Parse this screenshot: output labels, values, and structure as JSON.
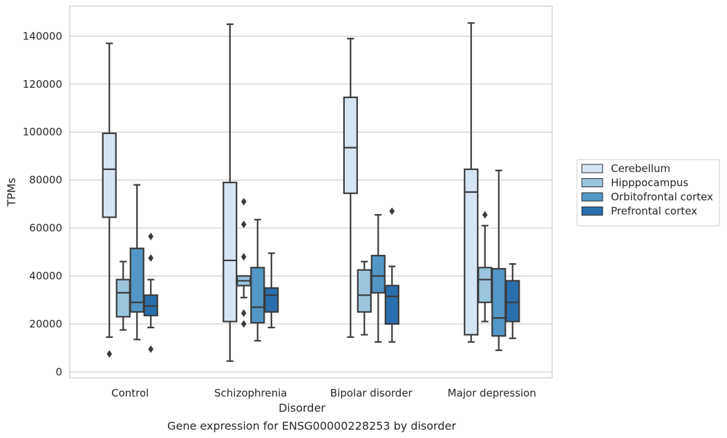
{
  "caption": "Gene expression for ENSG00000228253 by disorder",
  "chart_data": {
    "type": "box",
    "xlabel": "Disorder",
    "ylabel": "TPMs",
    "ylim": [
      -2500,
      152500
    ],
    "yticks": [
      0,
      20000,
      40000,
      60000,
      80000,
      100000,
      120000,
      140000
    ],
    "ytick_labels": [
      "0",
      "20000",
      "40000",
      "60000",
      "80000",
      "100000",
      "120000",
      "140000"
    ],
    "grid": true,
    "legend_position": "right",
    "categories": [
      "Control",
      "Schizophrenia",
      "Bipolar disorder",
      "Major depression"
    ],
    "series": [
      {
        "name": "Cerebellum",
        "color": "#d6e5f4",
        "boxes": [
          {
            "whisker_low": 14500,
            "q1": 64500,
            "median": 84500,
            "q3": 99500,
            "whisker_high": 137000,
            "outliers": [
              7500
            ]
          },
          {
            "whisker_low": 4500,
            "q1": 21000,
            "median": 46500,
            "q3": 79000,
            "whisker_high": 145000,
            "outliers": []
          },
          {
            "whisker_low": 14500,
            "q1": 74500,
            "median": 93500,
            "q3": 114500,
            "whisker_high": 139000,
            "outliers": []
          },
          {
            "whisker_low": 12500,
            "q1": 15500,
            "median": 75000,
            "q3": 84500,
            "whisker_high": 145500,
            "outliers": []
          }
        ]
      },
      {
        "name": "Hipppocampus",
        "color": "#9bc5dd",
        "boxes": [
          {
            "whisker_low": 17500,
            "q1": 23000,
            "median": 33000,
            "q3": 38500,
            "whisker_high": 46000,
            "outliers": []
          },
          {
            "whisker_low": 31000,
            "q1": 36000,
            "median": 38000,
            "q3": 40000,
            "whisker_high": 40000,
            "outliers": [
              20000,
              24500,
              48000,
              61500,
              71000
            ]
          },
          {
            "whisker_low": 15500,
            "q1": 25000,
            "median": 32000,
            "q3": 42500,
            "whisker_high": 46000,
            "outliers": []
          },
          {
            "whisker_low": 21000,
            "q1": 29000,
            "median": 38500,
            "q3": 43500,
            "whisker_high": 61000,
            "outliers": [
              65500
            ]
          }
        ]
      },
      {
        "name": "Orbitofrontal cortex",
        "color": "#5397c6",
        "boxes": [
          {
            "whisker_low": 13500,
            "q1": 25000,
            "median": 29000,
            "q3": 51500,
            "whisker_high": 78000,
            "outliers": []
          },
          {
            "whisker_low": 13000,
            "q1": 20500,
            "median": 27000,
            "q3": 43500,
            "whisker_high": 63500,
            "outliers": []
          },
          {
            "whisker_low": 12500,
            "q1": 33000,
            "median": 40000,
            "q3": 48500,
            "whisker_high": 65500,
            "outliers": []
          },
          {
            "whisker_low": 9000,
            "q1": 15000,
            "median": 22500,
            "q3": 43000,
            "whisker_high": 84000,
            "outliers": []
          }
        ]
      },
      {
        "name": "Prefrontal cortex",
        "color": "#2a6fad",
        "boxes": [
          {
            "whisker_low": 18500,
            "q1": 23500,
            "median": 27500,
            "q3": 32000,
            "whisker_high": 38500,
            "outliers": [
              9500,
              47500,
              56500
            ]
          },
          {
            "whisker_low": 18500,
            "q1": 25000,
            "median": 32000,
            "q3": 35000,
            "whisker_high": 49500,
            "outliers": []
          },
          {
            "whisker_low": 12500,
            "q1": 20000,
            "median": 31500,
            "q3": 36000,
            "whisker_high": 44000,
            "outliers": [
              67000
            ]
          },
          {
            "whisker_low": 14000,
            "q1": 21000,
            "median": 29000,
            "q3": 38000,
            "whisker_high": 45000,
            "outliers": []
          }
        ]
      }
    ]
  }
}
